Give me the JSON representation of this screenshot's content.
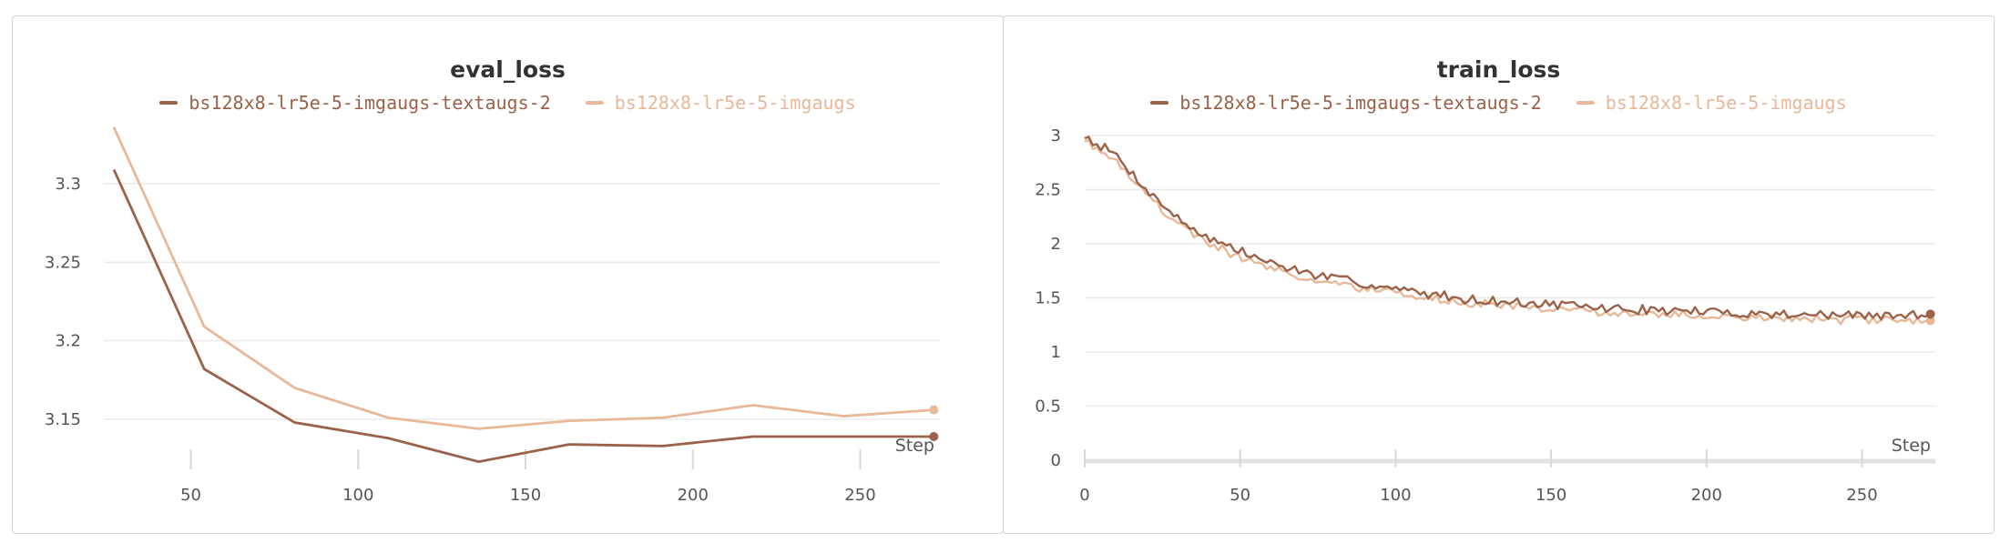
{
  "colors": {
    "series_dark": "#9a6248",
    "series_light": "#e8b898",
    "grid": "#ebebeb",
    "tick": "#d8d8d8"
  },
  "chart_data": [
    {
      "type": "line",
      "title": "eval_loss",
      "xlabel": "Step",
      "xlim": [
        24,
        273
      ],
      "ylim": [
        3.1,
        3.345
      ],
      "xticks": [
        50,
        100,
        150,
        200,
        250
      ],
      "yticks": [
        3.15,
        3.2,
        3.25,
        3.3
      ],
      "xtick_labels": [
        "50",
        "100",
        "150",
        "200",
        "250"
      ],
      "ytick_labels": [
        "3.15",
        "3.2",
        "3.25",
        "3.3"
      ],
      "x_axis_line": false,
      "legend": "top-center",
      "series": [
        {
          "name": "bs128x8-lr5e-5-imgaugs-textaugs-2",
          "color": "#9a6248",
          "x": [
            27,
            54,
            81,
            109,
            136,
            163,
            191,
            218,
            245,
            272
          ],
          "y": [
            3.309,
            3.182,
            3.148,
            3.138,
            3.123,
            3.134,
            3.133,
            3.139,
            3.139,
            3.139
          ]
        },
        {
          "name": "bs128x8-lr5e-5-imgaugs",
          "color": "#e8b898",
          "x": [
            27,
            54,
            81,
            109,
            136,
            163,
            191,
            218,
            245,
            272
          ],
          "y": [
            3.336,
            3.209,
            3.17,
            3.151,
            3.144,
            3.149,
            3.151,
            3.159,
            3.152,
            3.156
          ]
        }
      ]
    },
    {
      "type": "line",
      "title": "train_loss",
      "xlabel": "Step",
      "xlim": [
        0,
        273
      ],
      "ylim": [
        0,
        3.08
      ],
      "xticks": [
        0,
        50,
        100,
        150,
        200,
        250
      ],
      "yticks": [
        0,
        0.5,
        1,
        1.5,
        2,
        2.5,
        3
      ],
      "xtick_labels": [
        "0",
        "50",
        "100",
        "150",
        "200",
        "250"
      ],
      "ytick_labels": [
        "0",
        "0.5",
        "1",
        "1.5",
        "2",
        "2.5",
        "3"
      ],
      "x_axis_line": true,
      "legend": "top-center",
      "series": [
        {
          "name": "bs128x8-lr5e-5-imgaugs-textaugs-2",
          "color": "#9a6248",
          "x": [
            0,
            10,
            20,
            30,
            40,
            50,
            60,
            70,
            80,
            90,
            100,
            110,
            120,
            130,
            140,
            150,
            160,
            170,
            180,
            190,
            200,
            210,
            220,
            230,
            240,
            250,
            260,
            272
          ],
          "y": [
            3.0,
            2.82,
            2.5,
            2.23,
            2.05,
            1.93,
            1.82,
            1.74,
            1.68,
            1.63,
            1.58,
            1.54,
            1.5,
            1.48,
            1.45,
            1.44,
            1.42,
            1.4,
            1.39,
            1.38,
            1.37,
            1.36,
            1.35,
            1.35,
            1.34,
            1.34,
            1.33,
            1.35
          ],
          "noise": 0.032,
          "seed": 7
        },
        {
          "name": "bs128x8-lr5e-5-imgaugs",
          "color": "#e8b898",
          "x": [
            0,
            10,
            20,
            30,
            40,
            50,
            60,
            70,
            80,
            90,
            100,
            110,
            120,
            130,
            140,
            150,
            160,
            170,
            180,
            190,
            200,
            210,
            220,
            230,
            240,
            250,
            260,
            272
          ],
          "y": [
            2.96,
            2.78,
            2.45,
            2.18,
            2.0,
            1.88,
            1.77,
            1.69,
            1.63,
            1.58,
            1.54,
            1.5,
            1.46,
            1.44,
            1.41,
            1.4,
            1.38,
            1.36,
            1.35,
            1.34,
            1.33,
            1.32,
            1.31,
            1.31,
            1.3,
            1.3,
            1.29,
            1.29
          ],
          "noise": 0.028,
          "seed": 19
        }
      ]
    }
  ]
}
